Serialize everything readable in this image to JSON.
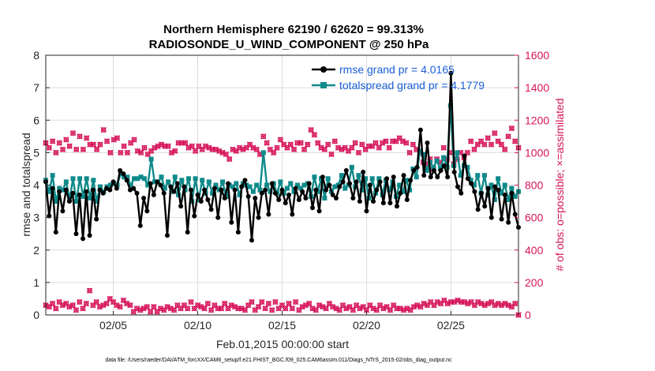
{
  "colors": {
    "rmse": "#000000",
    "spread": "#0f8a8a",
    "obs": "#d6155a",
    "legend_text": "#1a5fd6",
    "axis": "#262626"
  },
  "footnote": "data file: /Users/raeder/DAI/ATM_forcXX/CAM6_setup/f.e21.FHIST_BGC.f09_025.CAM6assim.011/Diags_NTrS_2015-02/obs_diag_output.nc",
  "chart_data": {
    "type": "line",
    "title": "Northern Hemisphere 62190 / 62620 = 99.313%",
    "subtitle": "RADIOSONDE_U_WIND_COMPONENT @ 250 hPa",
    "xlabel": "Feb.01,2015 00:00:00 start",
    "ylabel": "rmse and totalspread",
    "ylabel_right": "# of obs: o=possible; ×=assimilated",
    "xlim": [
      0,
      28
    ],
    "ylim": [
      0,
      8
    ],
    "ylim_right": [
      0,
      1600
    ],
    "x_ticks": [
      4,
      9,
      14,
      19,
      24
    ],
    "x_tick_labels": [
      "02/05",
      "02/10",
      "02/15",
      "02/20",
      "02/25"
    ],
    "y_ticks": [
      "0",
      "1",
      "2",
      "3",
      "4",
      "5",
      "6",
      "7",
      "8"
    ],
    "y_ticks_right": [
      "0",
      "200",
      "400",
      "600",
      "800",
      "1000",
      "1200",
      "1400",
      "1600"
    ],
    "legend": [
      "rmse grand pr = 4.0165",
      "totalspread grand pr = 4.1779"
    ],
    "series": [
      {
        "name": "rmse",
        "values": [
          4.1,
          3.05,
          3.9,
          2.55,
          3.8,
          3.2,
          3.85,
          3.5,
          3.75,
          2.5,
          3.7,
          2.35,
          3.8,
          2.45,
          3.85,
          2.95,
          3.85,
          3.75,
          3.9,
          3.85,
          4.1,
          3.9,
          4.45,
          4.35,
          4.15,
          3.85,
          3.9,
          3.75,
          2.75,
          3.6,
          3.2,
          4.05,
          3.7,
          4.1,
          4.0,
          3.75,
          2.45,
          3.95,
          3.8,
          4.05,
          3.35,
          3.95,
          2.55,
          3.85,
          3.05,
          3.7,
          3.5,
          3.85,
          3.55,
          3.25,
          3.9,
          3.0,
          3.85,
          3.6,
          4.05,
          2.85,
          3.85,
          2.55,
          3.95,
          4.15,
          3.65,
          2.3,
          3.6,
          3.0,
          3.75,
          3.85,
          3.1,
          4.05,
          3.75,
          3.55,
          3.85,
          3.45,
          3.7,
          3.1,
          3.9,
          3.55,
          3.8,
          3.6,
          4.05,
          3.3,
          3.85,
          3.2,
          4.25,
          3.85,
          4.0,
          3.7,
          3.6,
          3.95,
          4.1,
          4.45,
          4.05,
          3.6,
          4.1,
          3.5,
          4.4,
          3.2,
          4.0,
          3.5,
          3.85,
          4.1,
          3.45,
          4.2,
          3.45,
          4.25,
          3.35,
          3.75,
          4.3,
          3.55,
          4.15,
          4.45,
          4.55,
          5.7,
          4.3,
          5.3,
          4.25,
          4.45,
          4.25,
          4.45,
          4.6,
          4.25,
          7.45,
          4.4,
          3.95,
          3.75,
          4.9,
          4.2,
          4.05,
          3.8,
          3.25,
          3.75,
          3.35,
          3.9,
          3.0,
          3.95,
          3.85,
          2.95,
          3.7,
          2.85,
          3.75,
          3.1,
          2.7
        ]
      },
      {
        "name": "totalspread",
        "values": [
          4.15,
          3.8,
          4.3,
          3.5,
          3.9,
          3.85,
          4.1,
          3.55,
          4.2,
          3.5,
          4.2,
          3.65,
          4.2,
          3.6,
          4.15,
          3.5,
          3.95,
          3.8,
          3.95,
          4.0,
          4.05,
          4.0,
          4.35,
          4.25,
          4.25,
          4.0,
          4.2,
          4.2,
          4.25,
          4.2,
          4.0,
          4.8,
          4.1,
          4.1,
          4.25,
          3.9,
          4.1,
          3.8,
          4.25,
          3.7,
          4.15,
          3.85,
          4.2,
          3.5,
          4.2,
          3.55,
          4.15,
          3.75,
          4.1,
          3.75,
          4.0,
          3.85,
          4.1,
          3.65,
          4.0,
          3.95,
          4.05,
          3.7,
          4.05,
          4.0,
          3.95,
          3.8,
          4.0,
          3.85,
          5.0,
          4.0,
          3.8,
          4.05,
          3.75,
          4.1,
          3.75,
          3.9,
          4.05,
          3.8,
          4.0,
          3.9,
          4.0,
          4.05,
          3.65,
          4.25,
          3.8,
          4.2,
          3.6,
          4.2,
          3.8,
          3.95,
          4.0,
          4.3,
          3.9,
          4.0,
          4.55,
          3.95,
          4.3,
          3.85,
          4.2,
          3.6,
          4.2,
          3.75,
          4.2,
          3.7,
          4.15,
          3.85,
          4.1,
          3.65,
          4.0,
          3.8,
          4.15,
          3.85,
          4.5,
          4.25,
          5.05,
          4.95,
          4.45,
          4.7,
          4.55,
          4.75,
          4.5,
          4.85,
          4.55,
          6.45,
          4.6,
          5.0,
          4.3,
          4.6,
          4.55,
          4.15,
          4.0,
          4.3,
          3.75,
          4.3,
          3.7,
          4.0,
          3.55,
          4.2,
          3.75,
          4.0,
          3.55,
          3.9,
          3.65,
          3.8
        ]
      },
      {
        "name": "possible",
        "values": [
          1060,
          1030,
          1070,
          1000,
          1060,
          1020,
          1080,
          1040,
          1120,
          1020,
          1100,
          1020,
          1090,
          1050,
          1050,
          1020,
          1050,
          1140,
          1070,
          1000,
          1080,
          1090,
          1000,
          1040,
          1000,
          1060,
          1080,
          1010,
          1000,
          1030,
          990,
          1010,
          1030,
          1040,
          1050,
          1040,
          1040,
          1000,
          1010,
          1060,
          1060,
          1060,
          1030,
          1040,
          1010,
          1040,
          1020,
          1040,
          1030,
          1020,
          1020,
          1010,
          1000,
          990,
          960,
          1020,
          1010,
          1030,
          1020,
          1030,
          1050,
          1030,
          1020,
          990,
          1100,
          1060,
          1020,
          1000,
          1030,
          1080,
          1050,
          1030,
          1050,
          1020,
          1060,
          1060,
          1020,
          1050,
          1140,
          1110,
          1060,
          1030,
          1020,
          1050,
          990,
          1070,
          1030,
          1020,
          1030,
          1010,
          1030,
          1060,
          1000,
          1050,
          1020,
          1040,
          1040,
          1060,
          1030,
          1060,
          1070,
          1030,
          1070,
          1070,
          1090,
          1070,
          1060,
          1000,
          1050,
          1020,
          1000,
          940,
          930,
          960,
          900,
          960,
          940,
          1030,
          960,
          1000,
          930,
          960,
          1000,
          970,
          1000,
          1070,
          1020,
          1050,
          1070,
          1050,
          1090,
          1050,
          1120,
          1070,
          1050,
          1020,
          1100,
          1150,
          1070,
          1030
        ]
      },
      {
        "name": "assimilated",
        "values": [
          60,
          50,
          70,
          40,
          80,
          60,
          70,
          50,
          60,
          30,
          80,
          40,
          70,
          150,
          60,
          80,
          50,
          60,
          70,
          100,
          80,
          60,
          50,
          90,
          70,
          60,
          20,
          40,
          30,
          40,
          50,
          20,
          50,
          20,
          40,
          30,
          50,
          40,
          30,
          60,
          40,
          60,
          40,
          80,
          40,
          60,
          50,
          40,
          70,
          30,
          60,
          40,
          40,
          70,
          40,
          60,
          50,
          40,
          40,
          30,
          60,
          80,
          30,
          50,
          80,
          40,
          70,
          30,
          80,
          40,
          60,
          40,
          70,
          40,
          80,
          30,
          50,
          60,
          70,
          40,
          30,
          60,
          50,
          40,
          70,
          50,
          40,
          30,
          60,
          40,
          50,
          30,
          60,
          40,
          50,
          30,
          60,
          40,
          30,
          60,
          40,
          50,
          30,
          60,
          40,
          40,
          30,
          40,
          30,
          50,
          60,
          50,
          70,
          60,
          80,
          60,
          80,
          70,
          90,
          70,
          80,
          80,
          90,
          80,
          80,
          70,
          80,
          60,
          80,
          70,
          60,
          70,
          80,
          60,
          70,
          60,
          70,
          60,
          50,
          70,
          0
        ]
      }
    ]
  }
}
